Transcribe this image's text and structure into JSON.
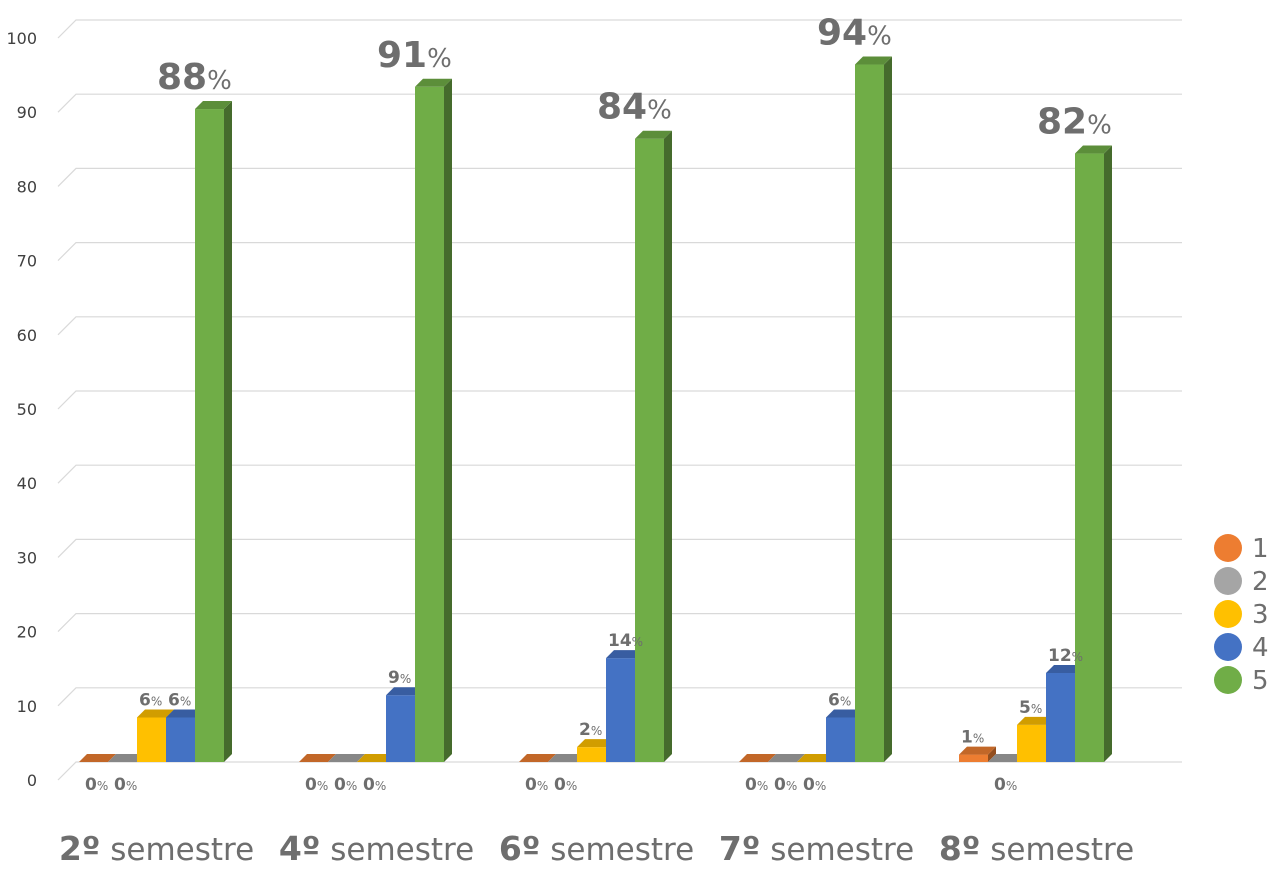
{
  "chart_data": {
    "type": "bar",
    "title": "",
    "xlabel": "",
    "ylabel": "",
    "ylim": [
      0,
      100
    ],
    "yticks": [
      0,
      10,
      20,
      30,
      40,
      50,
      60,
      70,
      80,
      90,
      100
    ],
    "grid": true,
    "legend_position": "right",
    "categories": [
      {
        "num": "2º",
        "word": " semestre"
      },
      {
        "num": "4º",
        "word": " semestre"
      },
      {
        "num": "6º",
        "word": " semestre"
      },
      {
        "num": "7º",
        "word": " semestre"
      },
      {
        "num": "8º",
        "word": " semestre"
      }
    ],
    "series": [
      {
        "name": "1",
        "color": "#ED7D31",
        "values": [
          0,
          0,
          0,
          0,
          1
        ]
      },
      {
        "name": "2",
        "color": "#A5A5A5",
        "values": [
          0,
          0,
          0,
          0,
          0
        ]
      },
      {
        "name": "3",
        "color": "#FFC000",
        "values": [
          6,
          0,
          2,
          0,
          5
        ]
      },
      {
        "name": "4",
        "color": "#4472C4",
        "values": [
          6,
          9,
          14,
          6,
          12
        ]
      },
      {
        "name": "5",
        "color": "#70AD47",
        "values": [
          88,
          91,
          84,
          94,
          82
        ]
      }
    ],
    "data_labels": [
      [
        {
          "num": "0",
          "pct": "%"
        },
        {
          "num": "0",
          "pct": "%"
        },
        {
          "num": "6",
          "pct": "%"
        },
        {
          "num": "6",
          "pct": "%"
        },
        {
          "num": "88",
          "pct": "%"
        }
      ],
      [
        {
          "num": "0",
          "pct": "%"
        },
        {
          "num": "0",
          "pct": "%"
        },
        {
          "num": "0",
          "pct": "%"
        },
        {
          "num": "9",
          "pct": "%"
        },
        {
          "num": "91",
          "pct": "%"
        }
      ],
      [
        {
          "num": "0",
          "pct": "%"
        },
        {
          "num": "0",
          "pct": "%"
        },
        {
          "num": "2",
          "pct": "%"
        },
        {
          "num": "14",
          "pct": "%"
        },
        {
          "num": "84",
          "pct": "%"
        }
      ],
      [
        {
          "num": "0",
          "pct": "%"
        },
        {
          "num": "0",
          "pct": "%"
        },
        {
          "num": "0",
          "pct": "%"
        },
        {
          "num": "6",
          "pct": "%"
        },
        {
          "num": "94",
          "pct": "%"
        }
      ],
      [
        {
          "num": "1",
          "pct": "%"
        },
        {
          "num": "0",
          "pct": "%"
        },
        {
          "num": "5",
          "pct": "%"
        },
        {
          "num": "12",
          "pct": "%"
        },
        {
          "num": "82",
          "pct": "%"
        }
      ]
    ]
  }
}
